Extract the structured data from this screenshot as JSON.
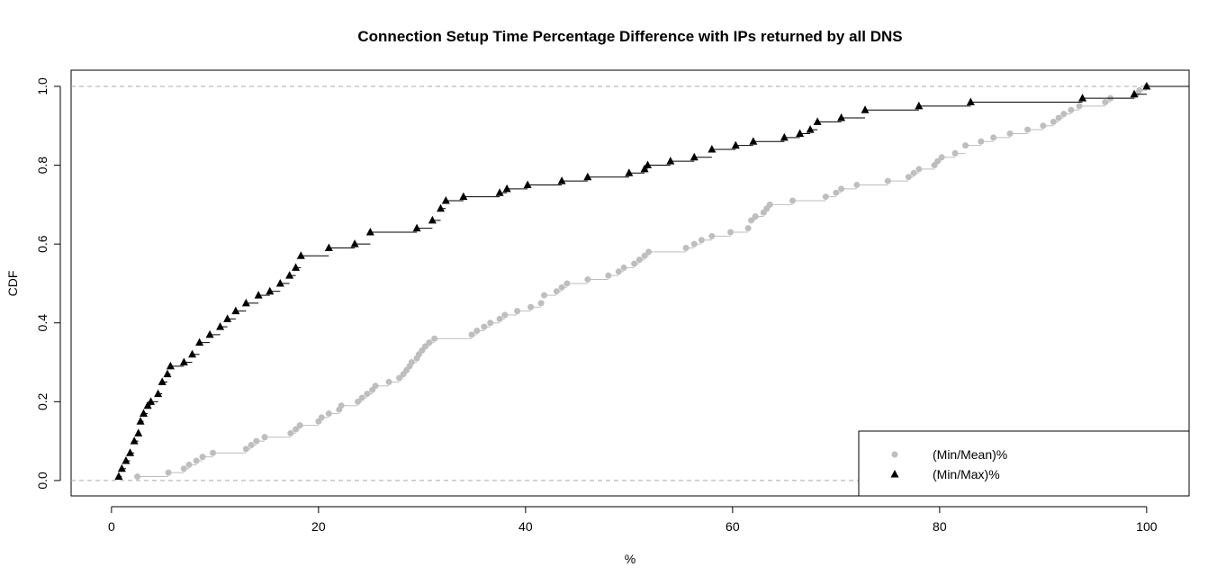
{
  "chart_data": {
    "type": "ecdf",
    "title": "Connection Setup Time Percentage Difference with IPs returned by all DNS",
    "x_label": "%",
    "y_label": "CDF",
    "xlim": [
      -3.9,
      104.1
    ],
    "ylim": [
      -0.039,
      1.041
    ],
    "xticks": [
      0,
      20,
      40,
      60,
      80,
      100
    ],
    "yticks": [
      {
        "value": 0,
        "label": "0.0"
      },
      0.2,
      0.4,
      0.6,
      0.8,
      {
        "value": 1,
        "label": "1.0"
      }
    ],
    "hlines": [
      0,
      1
    ],
    "legend": "bottomright",
    "series": [
      {
        "name": "(Min/Mean)%",
        "color": "#bebebe",
        "marker": "circle",
        "x": [
          2.5,
          5.5,
          7.0,
          7.5,
          8.2,
          8.8,
          9.8,
          13.0,
          13.5,
          14.0,
          14.8,
          17.3,
          17.8,
          18.2,
          20.0,
          20.3,
          21.0,
          22.0,
          22.2,
          23.8,
          24.2,
          24.7,
          25.2,
          25.5,
          26.8,
          27.8,
          28.2,
          28.5,
          28.8,
          29.0,
          29.5,
          29.7,
          30.0,
          30.3,
          30.7,
          31.2,
          34.8,
          35.3,
          36.0,
          36.6,
          37.5,
          38.0,
          39.2,
          40.5,
          41.5,
          41.8,
          43.0,
          43.5,
          44.0,
          46.0,
          48.0,
          49.0,
          49.5,
          50.5,
          51.0,
          51.5,
          51.9,
          55.5,
          56.3,
          57.0,
          58.0,
          59.8,
          61.5,
          61.8,
          62.2,
          63.0,
          63.3,
          63.6,
          65.8,
          69.0,
          70.0,
          70.5,
          72.0,
          75.0,
          77.0,
          77.5,
          78.0,
          79.5,
          79.8,
          80.2,
          81.5,
          82.5,
          84.0,
          85.2,
          86.8,
          88.5,
          90.0,
          91.0,
          91.5,
          92.0,
          92.7,
          93.5,
          96.0,
          96.5,
          99.0,
          99.3,
          100
        ],
        "values": [
          0.01,
          0.02,
          0.03,
          0.04,
          0.05,
          0.06,
          0.07,
          0.08,
          0.09,
          0.1,
          0.11,
          0.12,
          0.13,
          0.14,
          0.15,
          0.16,
          0.17,
          0.18,
          0.19,
          0.2,
          0.21,
          0.22,
          0.23,
          0.24,
          0.25,
          0.26,
          0.27,
          0.28,
          0.29,
          0.3,
          0.31,
          0.32,
          0.33,
          0.34,
          0.35,
          0.36,
          0.37,
          0.38,
          0.39,
          0.4,
          0.41,
          0.42,
          0.43,
          0.44,
          0.45,
          0.47,
          0.48,
          0.49,
          0.5,
          0.51,
          0.52,
          0.53,
          0.54,
          0.55,
          0.56,
          0.57,
          0.58,
          0.59,
          0.6,
          0.61,
          0.62,
          0.63,
          0.64,
          0.66,
          0.67,
          0.68,
          0.69,
          0.7,
          0.71,
          0.72,
          0.73,
          0.74,
          0.75,
          0.76,
          0.77,
          0.78,
          0.79,
          0.8,
          0.81,
          0.82,
          0.83,
          0.85,
          0.86,
          0.87,
          0.88,
          0.89,
          0.9,
          0.91,
          0.92,
          0.93,
          0.94,
          0.95,
          0.96,
          0.97,
          0.98,
          0.99,
          1.0
        ]
      },
      {
        "name": "(Min/Max)%",
        "color": "#000000",
        "marker": "triangle",
        "x": [
          0.7,
          1.0,
          1.4,
          1.8,
          2.2,
          2.6,
          2.8,
          3.1,
          3.5,
          3.8,
          4.5,
          4.9,
          5.4,
          5.7,
          7.0,
          7.8,
          8.5,
          9.5,
          10.5,
          11.2,
          12.0,
          13.0,
          14.2,
          15.3,
          16.3,
          17.2,
          17.8,
          18.3,
          21.0,
          23.5,
          25.0,
          29.5,
          31.0,
          31.8,
          32.3,
          34.0,
          37.5,
          38.2,
          40.2,
          43.5,
          46.0,
          50.0,
          51.5,
          51.8,
          54.0,
          56.3,
          58.0,
          60.3,
          62.0,
          65.0,
          66.5,
          67.5,
          68.2,
          70.5,
          72.8,
          78.0,
          83.0,
          93.8,
          98.8,
          100
        ],
        "values": [
          0.01,
          0.03,
          0.05,
          0.07,
          0.1,
          0.12,
          0.15,
          0.17,
          0.19,
          0.2,
          0.22,
          0.25,
          0.27,
          0.29,
          0.3,
          0.32,
          0.35,
          0.37,
          0.39,
          0.41,
          0.43,
          0.45,
          0.47,
          0.48,
          0.5,
          0.52,
          0.54,
          0.57,
          0.59,
          0.6,
          0.63,
          0.64,
          0.66,
          0.69,
          0.71,
          0.72,
          0.73,
          0.74,
          0.75,
          0.76,
          0.77,
          0.78,
          0.79,
          0.8,
          0.81,
          0.82,
          0.84,
          0.85,
          0.86,
          0.87,
          0.88,
          0.89,
          0.91,
          0.92,
          0.94,
          0.95,
          0.96,
          0.97,
          0.98,
          1.0
        ]
      }
    ]
  }
}
